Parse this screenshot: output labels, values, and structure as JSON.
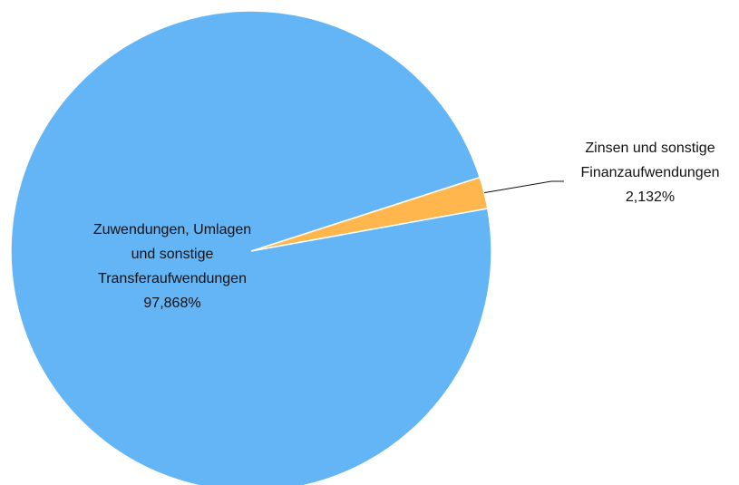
{
  "chart_data": {
    "type": "pie",
    "categories": [
      [
        "Zinsen und sonstige",
        "Finanzaufwendungen"
      ],
      [
        "Zuwendungen, Umlagen",
        "und sonstige",
        "Transferaufwendungen"
      ]
    ],
    "values": [
      2.132,
      97.868
    ],
    "value_labels": [
      "2,132%",
      "97,868%"
    ],
    "colors": [
      "#ffb74d",
      "#64b5f6"
    ]
  }
}
